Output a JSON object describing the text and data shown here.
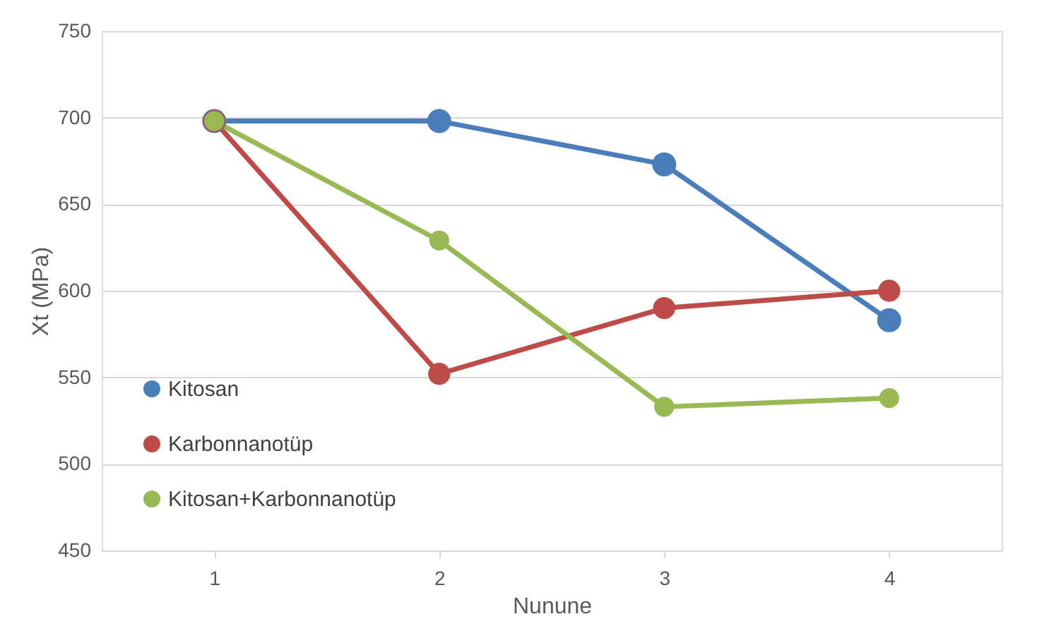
{
  "chart_data": {
    "type": "line",
    "xlabel": "Nunune",
    "ylabel": "Xt (MPa)",
    "categories": [
      "1",
      "2",
      "3",
      "4"
    ],
    "series": [
      {
        "name": "Kitosan",
        "color": "#4a7ebb",
        "values": [
          698,
          698,
          673,
          583
        ]
      },
      {
        "name": "Karbonnanotüp",
        "color": "#be4b48",
        "values": [
          698,
          552,
          590,
          600
        ]
      },
      {
        "name": "Kitosan+Karbonnanotüp",
        "color": "#98b954",
        "values": [
          698,
          629,
          533,
          538
        ]
      }
    ],
    "ylim": [
      450,
      750
    ],
    "yticks": [
      450,
      500,
      550,
      600,
      650,
      700,
      750
    ],
    "grid": "y",
    "legend": "bottom left",
    "marker": "circle",
    "line_style": "solid"
  }
}
